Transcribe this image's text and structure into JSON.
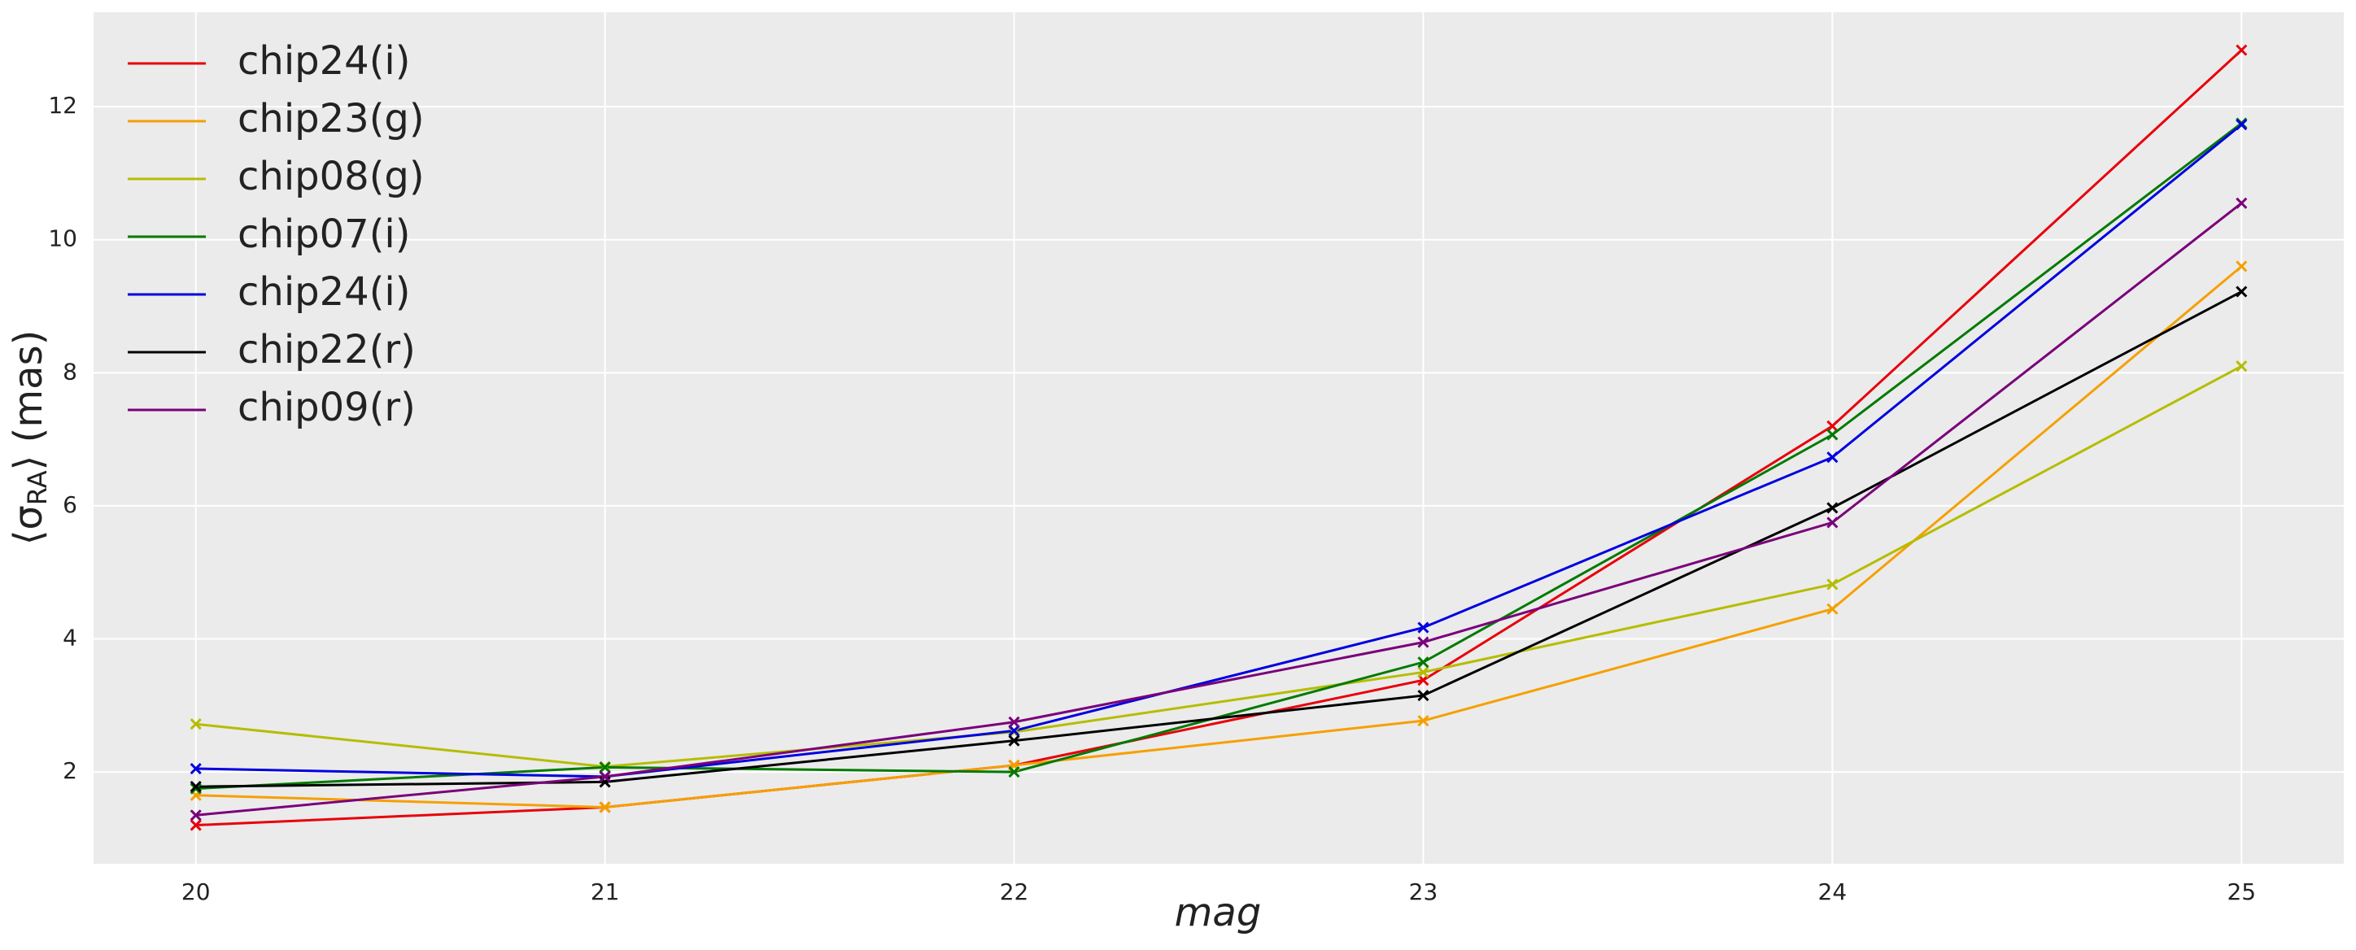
{
  "chart_data": {
    "type": "line",
    "x_label": "mag",
    "y_label": {
      "main": "⟨σ",
      "sub": "RA",
      "end": "⟩ (mas)"
    },
    "x": [
      20,
      21,
      22,
      23,
      24,
      25
    ],
    "xlim": [
      19.75,
      25.25
    ],
    "xticks": [
      20,
      21,
      22,
      23,
      24,
      25
    ],
    "ylim": [
      0.62,
      13.42
    ],
    "yticks": [
      2,
      4,
      6,
      8,
      10,
      12
    ],
    "grid": true,
    "legend": "upper left",
    "series": [
      {
        "name": "chip24(i)",
        "color": "#e8000b",
        "values": [
          1.2,
          1.47,
          2.1,
          3.38,
          7.2,
          12.85
        ]
      },
      {
        "name": "chip23(g)",
        "color": "#f5a000",
        "values": [
          1.65,
          1.47,
          2.1,
          2.77,
          4.45,
          9.6
        ]
      },
      {
        "name": "chip08(g)",
        "color": "#b5bd00",
        "values": [
          2.72,
          2.08,
          2.6,
          3.5,
          4.82,
          8.1
        ]
      },
      {
        "name": "chip07(i)",
        "color": "#007a00",
        "values": [
          1.75,
          2.07,
          2.0,
          3.65,
          7.07,
          11.75
        ]
      },
      {
        "name": "chip24(i)",
        "color": "#0000e0",
        "values": [
          2.05,
          1.93,
          2.62,
          4.17,
          6.73,
          11.73
        ]
      },
      {
        "name": "chip22(r)",
        "color": "#000000",
        "values": [
          1.78,
          1.85,
          2.47,
          3.15,
          5.97,
          9.22
        ]
      },
      {
        "name": "chip09(r)",
        "color": "#7a007a",
        "values": [
          1.35,
          1.93,
          2.75,
          3.95,
          5.75,
          10.55
        ]
      }
    ]
  }
}
